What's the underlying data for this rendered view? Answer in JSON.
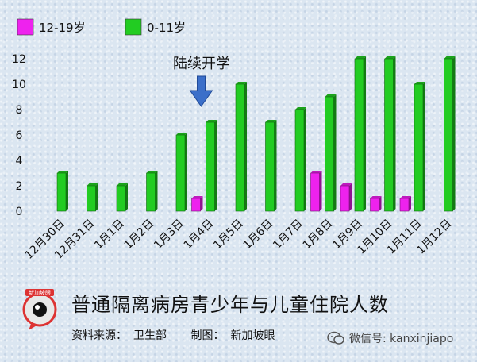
{
  "chart_data": {
    "type": "bar",
    "title": "普通隔离病房青少年与儿童住院人数",
    "categories": [
      "12月30日",
      "12月31日",
      "1月1日",
      "1月2日",
      "1月3日",
      "1月4日",
      "1月5日",
      "1月6日",
      "1月7日",
      "1月8日",
      "1月9日",
      "1月10日",
      "1月11日",
      "1月12日"
    ],
    "series": [
      {
        "name": "12-19岁",
        "color": "#ee22ee",
        "values": [
          0,
          0,
          0,
          0,
          0,
          1,
          0,
          0,
          0,
          3,
          2,
          1,
          1,
          0
        ]
      },
      {
        "name": "0-11岁",
        "color": "#22cc22",
        "values": [
          3,
          2,
          2,
          3,
          6,
          7,
          10,
          7,
          8,
          9,
          12,
          12,
          10,
          12
        ]
      }
    ],
    "yticks": [
      0,
      2,
      4,
      6,
      8,
      10,
      12
    ],
    "ylim": [
      0,
      12
    ],
    "xlabel": "",
    "ylabel": "",
    "legend_position": "top-left",
    "annotation": {
      "text": "陆续开学",
      "category": "1月4日",
      "icon": "down-arrow-icon"
    }
  },
  "footer": {
    "title": "普通隔离病房青少年与儿童住院人数",
    "source_label": "资料来源：",
    "source_value": "卫生部",
    "credit_label": "制图：",
    "credit_value": "新加坡眼"
  },
  "logo": {
    "icon": "sg-eye-logo-icon",
    "text": "新加坡眼"
  },
  "watermark": {
    "icon": "wechat-icon",
    "text": "微信号: kanxinjiapo"
  }
}
